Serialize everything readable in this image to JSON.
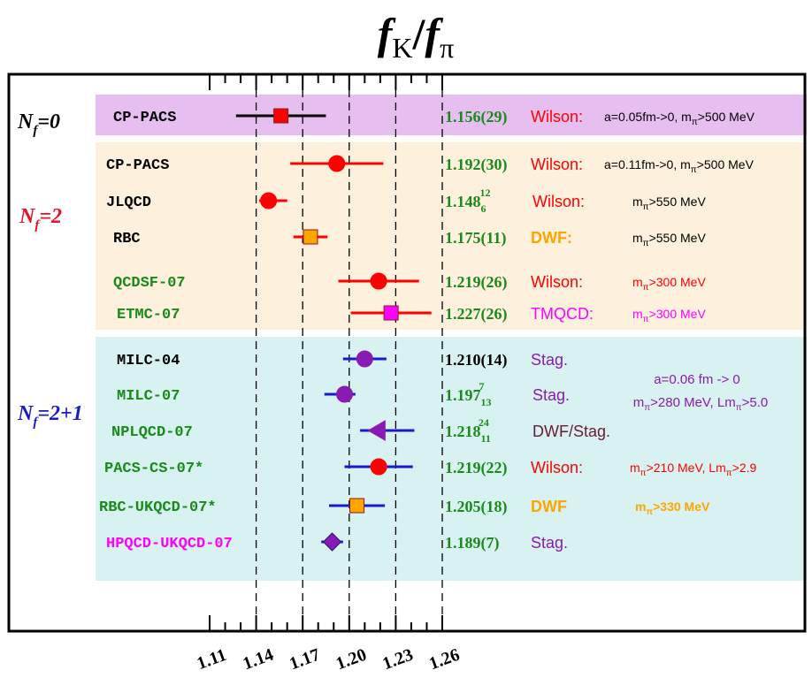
{
  "chart_data": {
    "type": "scatter",
    "title": "f_K/f_π",
    "title_parts": {
      "f1": "f",
      "sub1": "K",
      "slash": "/",
      "f2": "f",
      "sub2": "π"
    },
    "x_ticks": [
      "1.11",
      "1.14",
      "1.17",
      "1.20",
      "1.23",
      "1.26"
    ],
    "x_tick_values": [
      1.11,
      1.14,
      1.17,
      1.2,
      1.23,
      1.26
    ],
    "dashed_lines": [
      1.14,
      1.17,
      1.2,
      1.23,
      1.26
    ],
    "xlim": [
      1.08,
      1.3
    ],
    "groups": [
      {
        "label_main": "N",
        "label_sub": "f",
        "label_rest": "=0",
        "color": "#000000",
        "background": "#e6bff0"
      },
      {
        "label_main": "N",
        "label_sub": "f",
        "label_rest": "=2",
        "color": "#e8102a",
        "background": "#fdf0dc"
      },
      {
        "label_main": "N",
        "label_sub": "f",
        "label_rest": "=2+1",
        "color": "#1a1acc",
        "background": "#d8f2f2"
      }
    ],
    "points": [
      {
        "name": "CP-PACS",
        "group": 0,
        "name_color": "#000000",
        "value": 1.156,
        "err_lo": 0.029,
        "err_hi": 0.029,
        "marker": "square",
        "marker_color": "#ff0000",
        "bar_color": "#000000",
        "result": "1.156(29)",
        "action": "Wilson:",
        "action_color": "#ff0000",
        "note": "a=0.05fm->0, m",
        "note_sub": "π",
        "note_tail": ">500 MeV",
        "note_color": "#000000"
      },
      {
        "name": "CP-PACS",
        "group": 1,
        "name_color": "#000000",
        "value": 1.192,
        "err_lo": 0.03,
        "err_hi": 0.03,
        "marker": "circle",
        "marker_color": "#ff0000",
        "bar_color": "#ff0000",
        "result": "1.192(30)",
        "action": "Wilson:",
        "action_color": "#ff0000",
        "note": "a=0.11fm->0, m",
        "note_sub": "π",
        "note_tail": ">500 MeV",
        "note_color": "#000000"
      },
      {
        "name": "JLQCD",
        "group": 1,
        "name_color": "#000000",
        "value": 1.148,
        "err_lo": 0.006,
        "err_hi": 0.012,
        "marker": "circle",
        "marker_color": "#ff0000",
        "bar_color": "#ff0000",
        "result": "1.148",
        "result_sub": "6",
        "result_sup": "12",
        "action": "Wilson:",
        "action_color": "#ff0000",
        "note": "m",
        "note_sub": "π",
        "note_tail": ">550 MeV",
        "note_color": "#000000"
      },
      {
        "name": "RBC",
        "group": 1,
        "name_color": "#000000",
        "value": 1.175,
        "err_lo": 0.011,
        "err_hi": 0.011,
        "marker": "square",
        "marker_color": "#ffa500",
        "bar_color": "#ff0000",
        "result": "1.175(11)",
        "action": "DWF:",
        "action_color": "#ffa500",
        "note": "m",
        "note_sub": "π",
        "note_tail": ">550 MeV",
        "note_color": "#000000"
      },
      {
        "name": "QCDSF-07",
        "group": 1,
        "name_color": "#1a8a1a",
        "value": 1.219,
        "err_lo": 0.026,
        "err_hi": 0.026,
        "marker": "circle",
        "marker_color": "#ff0000",
        "bar_color": "#ff0000",
        "result": "1.219(26)",
        "action": "Wilson:",
        "action_color": "#ff0000",
        "note": "m",
        "note_sub": "π",
        "note_tail": ">300 MeV",
        "note_color": "#ff0000"
      },
      {
        "name": "ETMC-07",
        "group": 1,
        "name_color": "#1a8a1a",
        "value": 1.227,
        "err_lo": 0.026,
        "err_hi": 0.026,
        "marker": "square",
        "marker_color": "#ff00ff",
        "bar_color": "#ff0000",
        "result": "1.227(26)",
        "action": "TMQCD:",
        "action_color": "#ff00ff",
        "note": "m",
        "note_sub": "π",
        "note_tail": ">300 MeV",
        "note_color": "#ff00ff"
      },
      {
        "name": "MILC-04",
        "group": 2,
        "name_color": "#000000",
        "value": 1.21,
        "err_lo": 0.014,
        "err_hi": 0.014,
        "marker": "circle",
        "marker_color": "#8a1ab4",
        "bar_color": "#1a1acc",
        "result": "1.210(14)",
        "result_color": "#000000",
        "action": "Stag.",
        "action_color": "#8a1ab4",
        "note": "",
        "note_sub": "",
        "note_tail": "",
        "note_color": "#8a1ab4"
      },
      {
        "name": "MILC-07",
        "group": 2,
        "name_color": "#1a8a1a",
        "value": 1.197,
        "err_lo": 0.013,
        "err_hi": 0.007,
        "marker": "circle",
        "marker_color": "#8a1ab4",
        "bar_color": "#1a1acc",
        "result": "1.197",
        "result_sub": "13",
        "result_sup": "7",
        "action": "Stag.",
        "action_color": "#8a1ab4",
        "note": "",
        "note_sub": "",
        "note_tail": "",
        "note_color": "#8a1ab4"
      },
      {
        "name": "NPLQCD-07",
        "group": 2,
        "name_color": "#1a8a1a",
        "value": 1.218,
        "err_lo": 0.011,
        "err_hi": 0.024,
        "marker": "triangle-left",
        "marker_color": "#8a1ab4",
        "bar_color": "#1a1acc",
        "result": "1.218",
        "result_sub": "11",
        "result_sup": "24",
        "action": "DWF/Stag.",
        "action_color": "#6a1a3a",
        "note": "",
        "note_sub": "",
        "note_tail": "",
        "note_color": "#000000"
      },
      {
        "name": "PACS-CS-07*",
        "group": 2,
        "name_color": "#1a8a1a",
        "value": 1.219,
        "err_lo": 0.022,
        "err_hi": 0.022,
        "marker": "circle",
        "marker_color": "#ff0000",
        "bar_color": "#1a1acc",
        "result": "1.219(22)",
        "action": "Wilson:",
        "action_color": "#ff0000",
        "note": "m",
        "note_sub": "π",
        "note_tail": ">210 MeV, Lm",
        "note_sub2": "π",
        "note_tail2": ">2.9",
        "note_color": "#ff0000"
      },
      {
        "name": "RBC-UKQCD-07*",
        "group": 2,
        "name_color": "#1a8a1a",
        "value": 1.205,
        "err_lo": 0.018,
        "err_hi": 0.018,
        "marker": "square",
        "marker_color": "#ffa500",
        "bar_color": "#1a1acc",
        "result": "1.205(18)",
        "action": "DWF",
        "action_color": "#ffa500",
        "note": "m",
        "note_sub": "π",
        "note_tail": ">330 MeV",
        "note_color": "#ffa500",
        "note_bold": true
      },
      {
        "name": "HPQCD-UKQCD-07",
        "group": 2,
        "name_color": "#ff00ff",
        "value": 1.189,
        "err_lo": 0.007,
        "err_hi": 0.007,
        "marker": "diamond",
        "marker_color": "#8a1ab4",
        "bar_color": "#1a1acc",
        "result": "1.189(7)",
        "action": "Stag.",
        "action_color": "#8a1ab4",
        "note": "",
        "note_sub": "",
        "note_tail": "",
        "note_color": "#8a1ab4"
      }
    ],
    "milc_note": {
      "line1": "a=0.06 fm -> 0",
      "line2_a": "m",
      "line2_sub": "π",
      "line2_b": ">280 MeV, Lm",
      "line2_sub2": "π",
      "line2_c": ">5.0",
      "color": "#8a1ab4"
    }
  }
}
